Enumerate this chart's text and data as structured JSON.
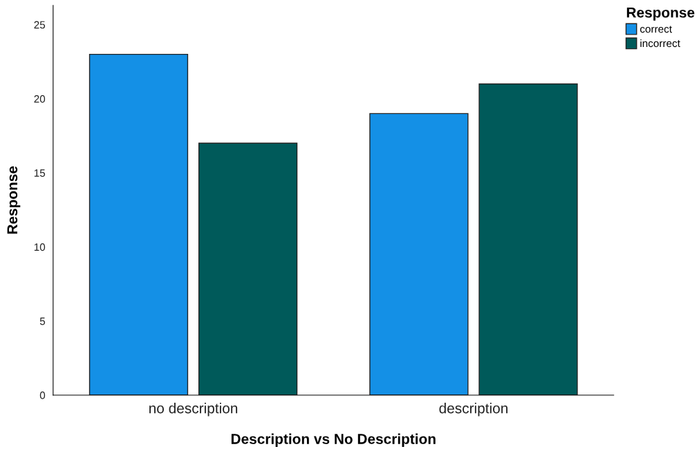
{
  "chart_data": {
    "type": "bar",
    "xlabel": "Description vs No Description",
    "ylabel": "Response",
    "legend_title": "Response",
    "categories": [
      "no description",
      "description"
    ],
    "series": [
      {
        "name": "correct",
        "color": "#1490e6",
        "values": [
          23,
          19
        ]
      },
      {
        "name": "incorrect",
        "color": "#005a5a",
        "values": [
          17,
          21
        ]
      }
    ],
    "ylim": [
      0,
      26.3
    ],
    "yticks": [
      0,
      5,
      10,
      15,
      20,
      25
    ],
    "grid": false,
    "legend": "top right"
  }
}
